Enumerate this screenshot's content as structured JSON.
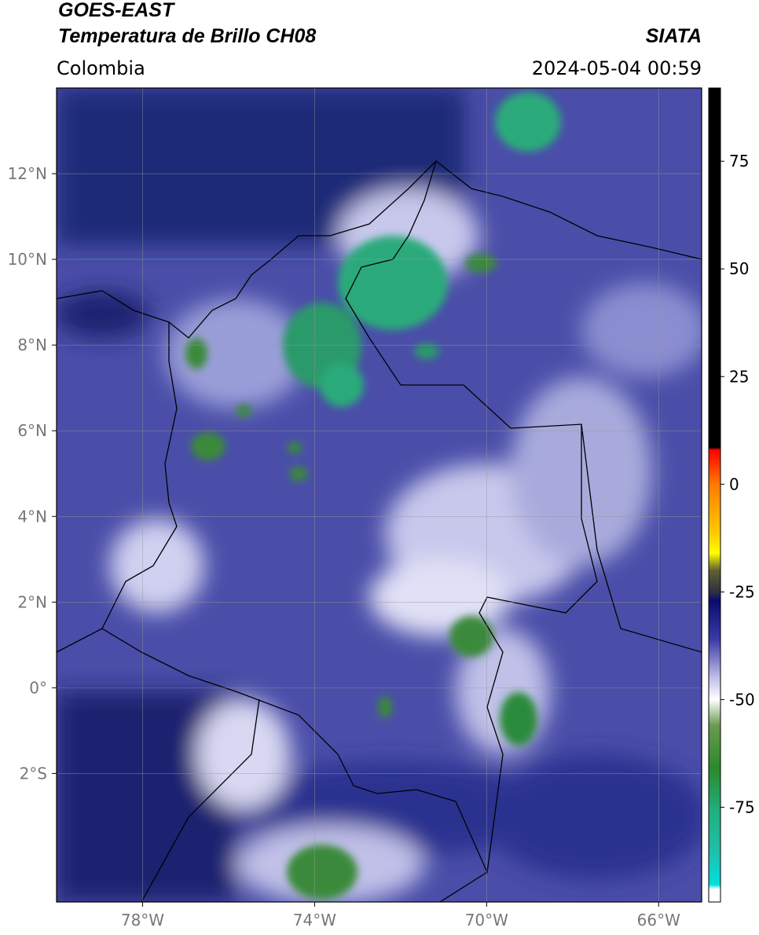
{
  "header": {
    "title": "GOES-EAST",
    "subtitle": "Temperatura de Brillo CH08",
    "source": "SIATA",
    "region": "Colombia",
    "timestamp": "2024-05-04 00:59"
  },
  "map": {
    "xlim": [
      -80,
      -65
    ],
    "ylim": [
      -5,
      14
    ],
    "grid": true,
    "xticks": [
      {
        "value": -78,
        "label": "78°W"
      },
      {
        "value": -74,
        "label": "74°W"
      },
      {
        "value": -70,
        "label": "70°W"
      },
      {
        "value": -66,
        "label": "66°W"
      }
    ],
    "yticks": [
      {
        "value": 12,
        "label": "12°N"
      },
      {
        "value": 10,
        "label": "10°N"
      },
      {
        "value": 8,
        "label": "8°N"
      },
      {
        "value": 6,
        "label": "6°N"
      },
      {
        "value": 4,
        "label": "4°N"
      },
      {
        "value": 2,
        "label": "2°N"
      },
      {
        "value": 0,
        "label": "0°"
      },
      {
        "value": -2,
        "label": "2°S"
      }
    ]
  },
  "colorbar": {
    "lim": [
      -97,
      92
    ],
    "ticks": [
      75,
      50,
      25,
      0,
      -25,
      -50,
      -75
    ],
    "stops": [
      {
        "value": 92,
        "color": "#000000"
      },
      {
        "value": 8.5,
        "color": "#000000"
      },
      {
        "value": 8,
        "color": "#ff0000"
      },
      {
        "value": 0,
        "color": "#ff7a00"
      },
      {
        "value": -12,
        "color": "#ffd000"
      },
      {
        "value": -16,
        "color": "#ffff00"
      },
      {
        "value": -20,
        "color": "#606030"
      },
      {
        "value": -25,
        "color": "#303040"
      },
      {
        "value": -27,
        "color": "#0a0a70"
      },
      {
        "value": -36,
        "color": "#3a3aa8"
      },
      {
        "value": -45,
        "color": "#c0c0e8"
      },
      {
        "value": -50,
        "color": "#ffffff"
      },
      {
        "value": -56,
        "color": "#6a9a50"
      },
      {
        "value": -66,
        "color": "#2a8a2a"
      },
      {
        "value": -76,
        "color": "#20b080"
      },
      {
        "value": -86,
        "color": "#20c0b0"
      },
      {
        "value": -93,
        "color": "#00e0e0"
      },
      {
        "value": -94,
        "color": "#ffffff"
      },
      {
        "value": -97,
        "color": "#ffffff"
      }
    ]
  }
}
